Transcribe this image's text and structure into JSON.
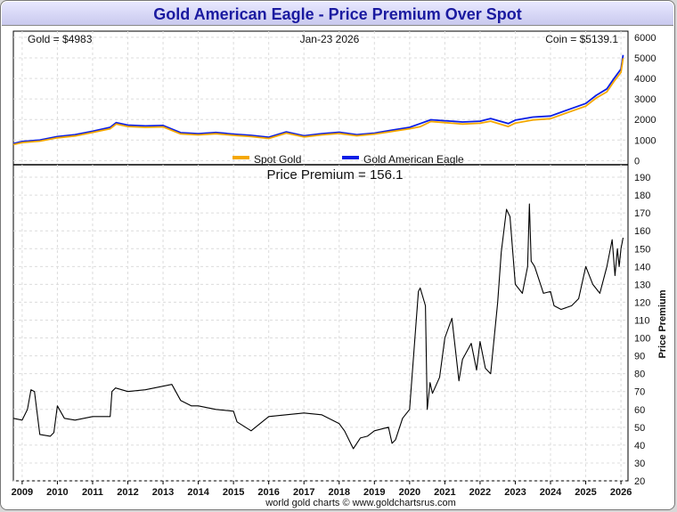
{
  "title": "Gold American Eagle - Price Premium Over Spot",
  "footer": "world gold charts © www.goldchartsrus.com",
  "colors": {
    "spot": "#f5a800",
    "eagle": "#0a1ee6",
    "premium": "#000000",
    "title": "#1a1aa0"
  },
  "chart_data": [
    {
      "type": "line",
      "header": {
        "gold": "Gold = $4983",
        "date": "Jan-23  2026",
        "coin": "Coin = $5139.1"
      },
      "legend": [
        {
          "name": "Spot Gold",
          "color": "#f5a800"
        },
        {
          "name": "Gold American Eagle",
          "color": "#0a1ee6"
        }
      ],
      "ylim": [
        -200,
        6300
      ],
      "yticks": [
        0,
        1000,
        2000,
        3000,
        4000,
        5000,
        6000
      ],
      "x": [
        2008.75,
        2009.0,
        2009.5,
        2010.0,
        2010.5,
        2011.0,
        2011.5,
        2011.67,
        2012.0,
        2012.5,
        2013.0,
        2013.5,
        2014.0,
        2014.5,
        2015.0,
        2015.5,
        2016.0,
        2016.5,
        2017.0,
        2017.5,
        2018.0,
        2018.5,
        2019.0,
        2019.5,
        2020.0,
        2020.3,
        2020.6,
        2021.0,
        2021.5,
        2022.0,
        2022.3,
        2022.8,
        2023.0,
        2023.5,
        2024.0,
        2024.5,
        2025.0,
        2025.3,
        2025.6,
        2025.8,
        2026.0,
        2026.06
      ],
      "series": [
        {
          "name": "Spot Gold",
          "values": [
            780,
            880,
            950,
            1110,
            1200,
            1370,
            1550,
            1780,
            1660,
            1620,
            1640,
            1300,
            1250,
            1310,
            1230,
            1170,
            1080,
            1340,
            1150,
            1250,
            1320,
            1210,
            1290,
            1420,
            1550,
            1650,
            1900,
            1850,
            1780,
            1820,
            1920,
            1660,
            1830,
            1980,
            2040,
            2350,
            2650,
            3050,
            3350,
            3850,
            4300,
            4983
          ]
        },
        {
          "name": "Gold American Eagle",
          "values": [
            830,
            930,
            1000,
            1170,
            1260,
            1430,
            1620,
            1850,
            1730,
            1690,
            1710,
            1360,
            1310,
            1370,
            1290,
            1230,
            1140,
            1400,
            1210,
            1310,
            1380,
            1260,
            1340,
            1480,
            1620,
            1800,
            1990,
            1940,
            1880,
            1920,
            2050,
            1800,
            1970,
            2120,
            2170,
            2480,
            2780,
            3180,
            3490,
            3990,
            4460,
            5139.1
          ]
        }
      ]
    },
    {
      "type": "line",
      "title": "Price Premium = 156.1",
      "ylabel": "Price Premium",
      "xlim": [
        2008.75,
        2026.2
      ],
      "ylim": [
        20,
        197
      ],
      "yticks": [
        20,
        30,
        40,
        50,
        60,
        70,
        80,
        90,
        100,
        110,
        120,
        130,
        140,
        150,
        160,
        170,
        180,
        190
      ],
      "xticks": [
        2009,
        2010,
        2011,
        2012,
        2013,
        2014,
        2015,
        2016,
        2017,
        2018,
        2019,
        2020,
        2021,
        2022,
        2023,
        2024,
        2025,
        2026
      ],
      "x": [
        2008.75,
        2009.0,
        2009.15,
        2009.25,
        2009.35,
        2009.5,
        2009.8,
        2009.9,
        2010.0,
        2010.2,
        2010.5,
        2011.0,
        2011.5,
        2011.55,
        2011.65,
        2012.0,
        2012.5,
        2013.0,
        2013.25,
        2013.5,
        2013.8,
        2014.0,
        2014.5,
        2015.0,
        2015.1,
        2015.5,
        2016.0,
        2016.5,
        2017.0,
        2017.5,
        2018.0,
        2018.15,
        2018.4,
        2018.6,
        2018.8,
        2019.0,
        2019.4,
        2019.5,
        2019.6,
        2019.8,
        2020.0,
        2020.25,
        2020.3,
        2020.45,
        2020.5,
        2020.58,
        2020.65,
        2020.85,
        2021.0,
        2021.2,
        2021.4,
        2021.5,
        2021.75,
        2021.9,
        2022.0,
        2022.15,
        2022.3,
        2022.5,
        2022.6,
        2022.75,
        2022.85,
        2023.0,
        2023.2,
        2023.35,
        2023.4,
        2023.45,
        2023.55,
        2023.8,
        2024.0,
        2024.1,
        2024.3,
        2024.6,
        2024.8,
        2025.0,
        2025.2,
        2025.4,
        2025.6,
        2025.75,
        2025.83,
        2025.9,
        2025.95,
        2026.0,
        2026.06
      ],
      "values": [
        55,
        54,
        60,
        71,
        70,
        46,
        45,
        47,
        62,
        55,
        54,
        56,
        56,
        70,
        72,
        70,
        71,
        73,
        74,
        65,
        62,
        62,
        60,
        59,
        53,
        48,
        56,
        57,
        58,
        57,
        52,
        48,
        38,
        44,
        45,
        48,
        50,
        41,
        43,
        55,
        60,
        126,
        128,
        118,
        60,
        75,
        69,
        78,
        100,
        111,
        76,
        88,
        97,
        82,
        98,
        83,
        80,
        120,
        148,
        172,
        168,
        130,
        125,
        140,
        175,
        143,
        140,
        125,
        126,
        118,
        116,
        118,
        122,
        140,
        130,
        125,
        140,
        155,
        135,
        150,
        140,
        150,
        156.1
      ]
    }
  ]
}
